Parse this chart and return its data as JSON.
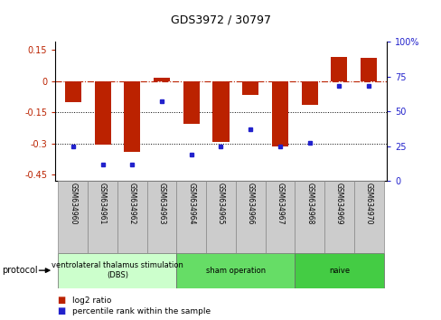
{
  "title": "GDS3972 / 30797",
  "samples": [
    "GSM634960",
    "GSM634961",
    "GSM634962",
    "GSM634963",
    "GSM634964",
    "GSM634965",
    "GSM634966",
    "GSM634967",
    "GSM634968",
    "GSM634969",
    "GSM634970"
  ],
  "log2_ratio": [
    -0.1,
    -0.305,
    -0.34,
    0.015,
    -0.205,
    -0.295,
    -0.065,
    -0.315,
    -0.115,
    0.115,
    0.11
  ],
  "percentile_rank": [
    25,
    12,
    12,
    57,
    19,
    25,
    37,
    25,
    27,
    68,
    68
  ],
  "bar_color": "#bb2200",
  "dot_color": "#2222cc",
  "ylim_left": [
    -0.48,
    0.19
  ],
  "ylim_right": [
    0,
    100
  ],
  "yticks_left": [
    0.15,
    0.0,
    -0.15,
    -0.3,
    -0.45
  ],
  "ytick_labels_left": [
    "0.15",
    "0",
    "-0.15",
    "-0.3",
    "-0.45"
  ],
  "yticks_right": [
    100,
    75,
    50,
    25,
    0
  ],
  "ytick_labels_right": [
    "100%",
    "75",
    "50",
    "25",
    "0"
  ],
  "hline_y": 0.0,
  "dotted_lines": [
    -0.15,
    -0.3
  ],
  "groups": [
    {
      "label": "ventrolateral thalamus stimulation\n(DBS)",
      "start": 0,
      "end": 3,
      "color": "#ccffcc"
    },
    {
      "label": "sham operation",
      "start": 4,
      "end": 7,
      "color": "#66dd66"
    },
    {
      "label": "naive",
      "start": 8,
      "end": 10,
      "color": "#44cc44"
    }
  ],
  "protocol_label": "protocol",
  "legend_items": [
    {
      "color": "#bb2200",
      "label": "log2 ratio"
    },
    {
      "color": "#2222cc",
      "label": "percentile rank within the sample"
    }
  ],
  "bar_width": 0.55
}
